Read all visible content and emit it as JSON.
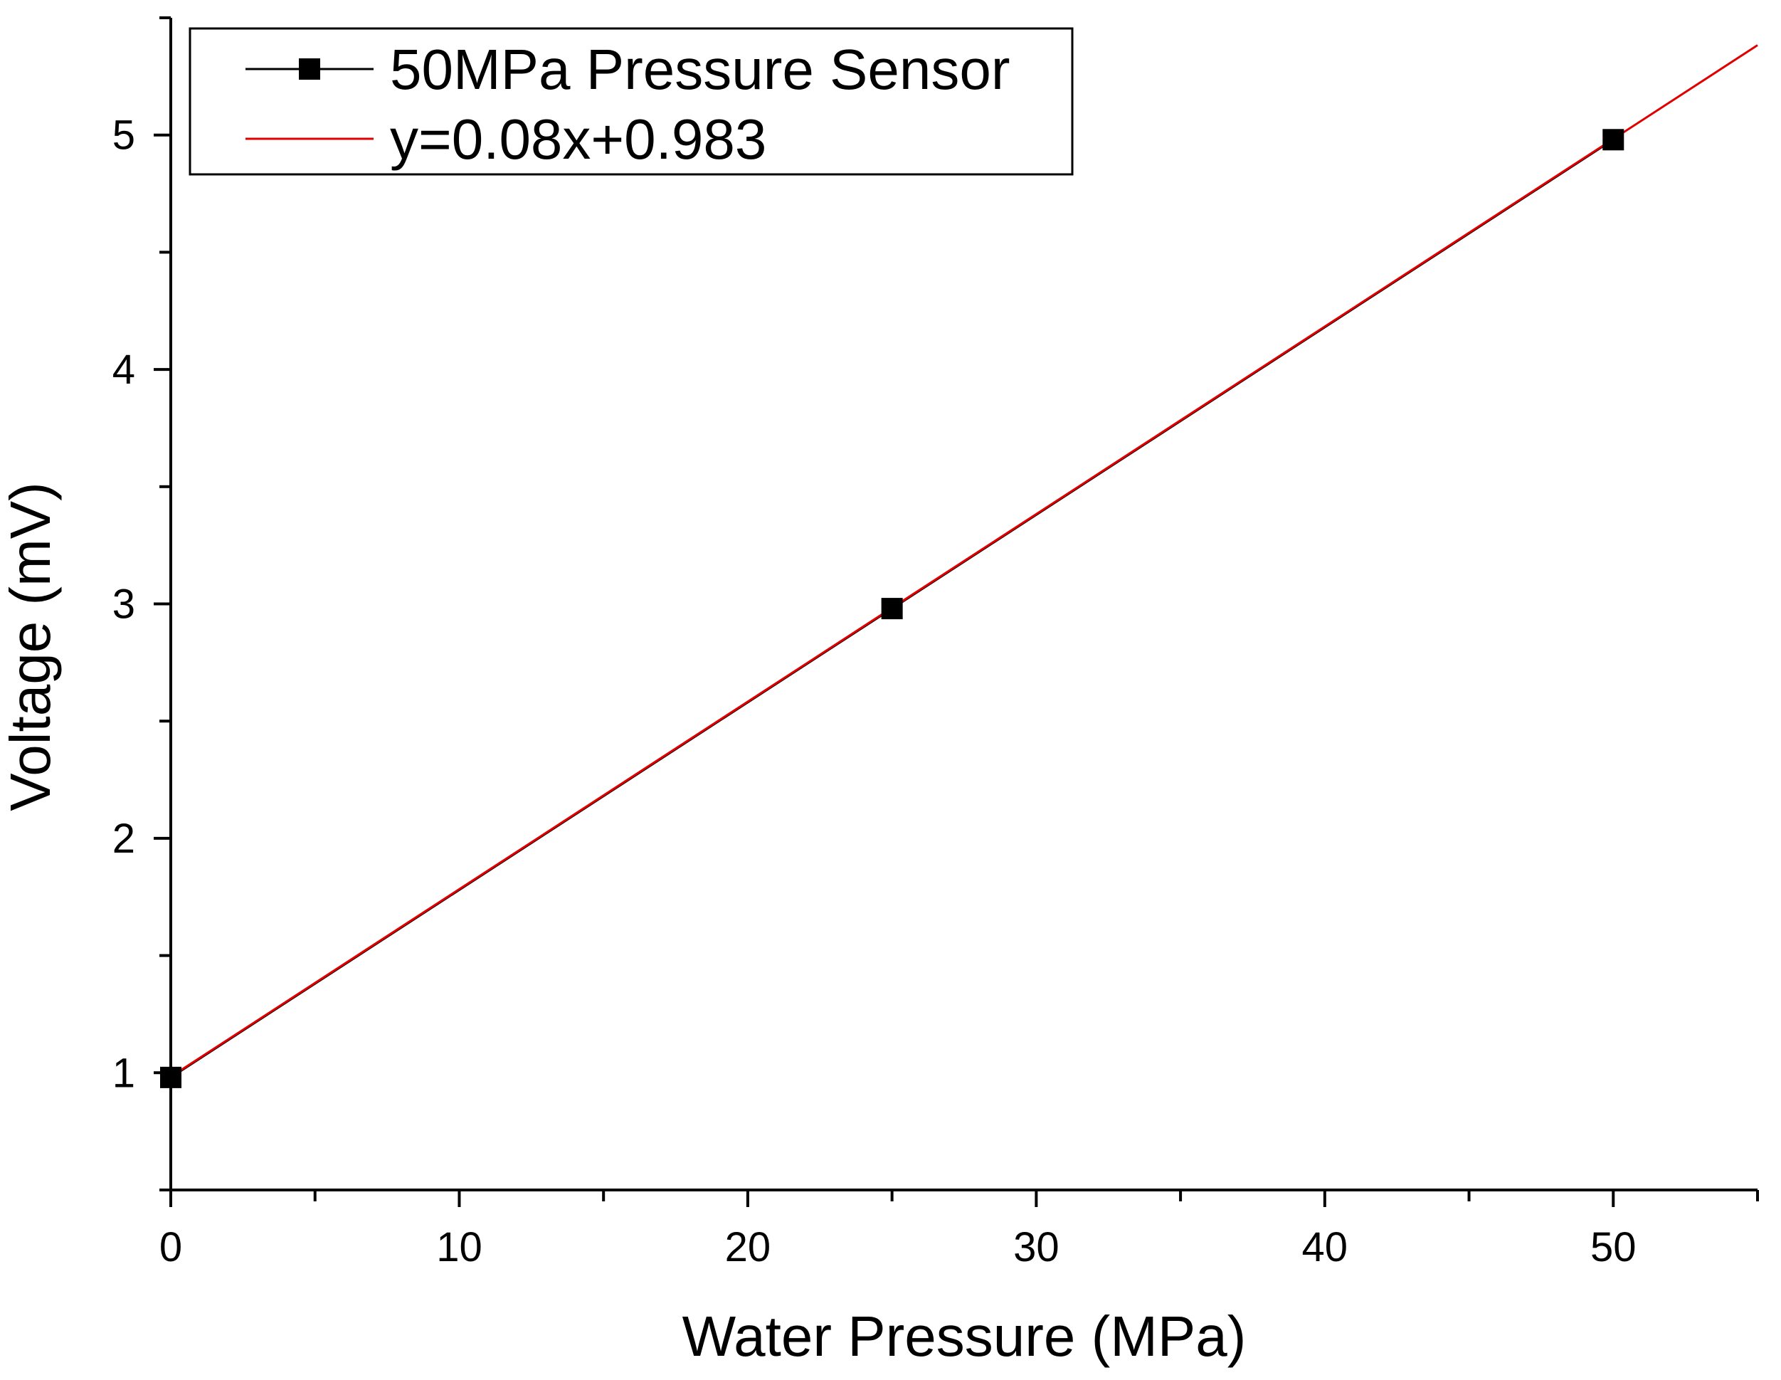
{
  "chart_data": {
    "type": "scatter",
    "title": "",
    "xlabel": "Water Pressure (MPa)",
    "ylabel": "Voltage (mV)",
    "xlim": [
      0,
      55
    ],
    "ylim": [
      0.5,
      5.5
    ],
    "x_ticks": [
      0,
      10,
      20,
      30,
      40,
      50
    ],
    "x_tick_labels": [
      "0",
      "10",
      "20",
      "30",
      "40",
      "50"
    ],
    "y_ticks": [
      1,
      2,
      3,
      4,
      5
    ],
    "y_tick_labels": [
      "1",
      "2",
      "3",
      "4",
      "5"
    ],
    "grid": false,
    "legend_position": "top-left",
    "series": [
      {
        "name": "50MPa Pressure Sensor",
        "kind": "line+markers",
        "color": "#000000",
        "marker": "square",
        "x": [
          0,
          25,
          50
        ],
        "y": [
          0.98,
          2.98,
          4.98
        ]
      },
      {
        "name": "y=0.08x+0.983",
        "kind": "fit-line",
        "color": "#e00000",
        "slope": 0.08,
        "intercept": 0.983,
        "x_range": [
          0,
          55
        ]
      }
    ]
  }
}
